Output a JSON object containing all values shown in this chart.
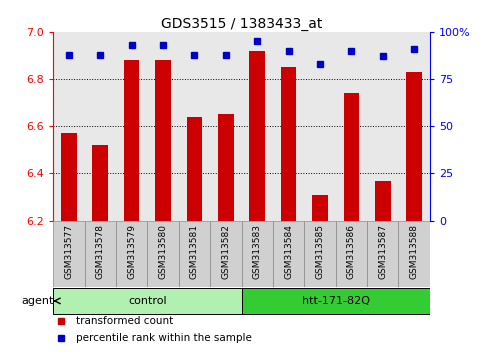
{
  "title": "GDS3515 / 1383433_at",
  "samples": [
    "GSM313577",
    "GSM313578",
    "GSM313579",
    "GSM313580",
    "GSM313581",
    "GSM313582",
    "GSM313583",
    "GSM313584",
    "GSM313585",
    "GSM313586",
    "GSM313587",
    "GSM313588"
  ],
  "red_values": [
    6.57,
    6.52,
    6.88,
    6.88,
    6.64,
    6.65,
    6.92,
    6.85,
    6.31,
    6.74,
    6.37,
    6.83
  ],
  "blue_values": [
    88,
    88,
    93,
    93,
    88,
    88,
    95,
    90,
    83,
    90,
    87,
    91
  ],
  "ylim_left": [
    6.2,
    7.0
  ],
  "ylim_right": [
    0,
    100
  ],
  "yticks_left": [
    6.2,
    6.4,
    6.6,
    6.8,
    7.0
  ],
  "yticks_right": [
    0,
    25,
    50,
    75,
    100
  ],
  "ytick_labels_right": [
    "0",
    "25",
    "50",
    "75",
    "100%"
  ],
  "groups": [
    {
      "label": "control",
      "start": 0,
      "end": 6,
      "color": "#b2f0b2"
    },
    {
      "label": "htt-171-82Q",
      "start": 6,
      "end": 12,
      "color": "#33cc33"
    }
  ],
  "agent_label": "agent",
  "bar_color": "#cc0000",
  "dot_color": "#0000cc",
  "plot_bg_color": "#e8e8e8",
  "sample_box_color": "#d0d0d0",
  "legend_items": [
    {
      "color": "#cc0000",
      "label": "transformed count"
    },
    {
      "color": "#0000cc",
      "label": "percentile rank within the sample"
    }
  ]
}
